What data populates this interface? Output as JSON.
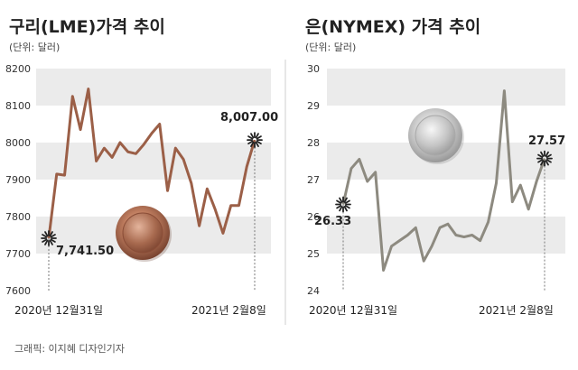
{
  "chart_data": [
    {
      "type": "line",
      "title": "구리(LME)가격 추이",
      "subtitle": "(단위: 달러)",
      "x_start_label": "2020년 12월31일",
      "x_end_label": "2021년 2월8일",
      "ylim": [
        7600,
        8200
      ],
      "yticks": [
        7600,
        7700,
        7800,
        7900,
        8000,
        8100,
        8200
      ],
      "grid": "alternating bands",
      "series": [
        {
          "values": [
            7741.5,
            7915,
            7912,
            8125,
            8035,
            8145,
            7950,
            7985,
            7960,
            8000,
            7975,
            7970,
            7995,
            8025,
            8050,
            7870,
            7985,
            7955,
            7890,
            7775,
            7875,
            7820,
            7755,
            7830,
            7830,
            7935,
            8007.0
          ]
        }
      ],
      "annotations": [
        {
          "point": "start",
          "text": "7,741.50"
        },
        {
          "point": "end",
          "text": "8,007.00"
        }
      ],
      "line_color": "#9b5f47"
    },
    {
      "type": "line",
      "title": "은(NYMEX) 가격 추이",
      "subtitle": "(단위: 달러)",
      "x_start_label": "2020년 12월31일",
      "x_end_label": "2021년 2월8일",
      "ylim": [
        24,
        30
      ],
      "yticks": [
        24,
        25,
        26,
        27,
        28,
        29,
        30
      ],
      "grid": "alternating bands",
      "series": [
        {
          "values": [
            26.33,
            27.3,
            27.55,
            26.95,
            27.2,
            24.55,
            25.2,
            25.35,
            25.5,
            25.7,
            24.8,
            25.2,
            25.7,
            25.8,
            25.5,
            25.45,
            25.5,
            25.35,
            25.85,
            26.9,
            29.4,
            26.4,
            26.85,
            26.2,
            26.95,
            27.57
          ]
        }
      ],
      "annotations": [
        {
          "point": "start",
          "text": "26.33"
        },
        {
          "point": "end",
          "text": "27.57"
        }
      ],
      "line_color": "#8d8a80"
    }
  ],
  "credit": "그래픽: 이지혜 디자인기자"
}
